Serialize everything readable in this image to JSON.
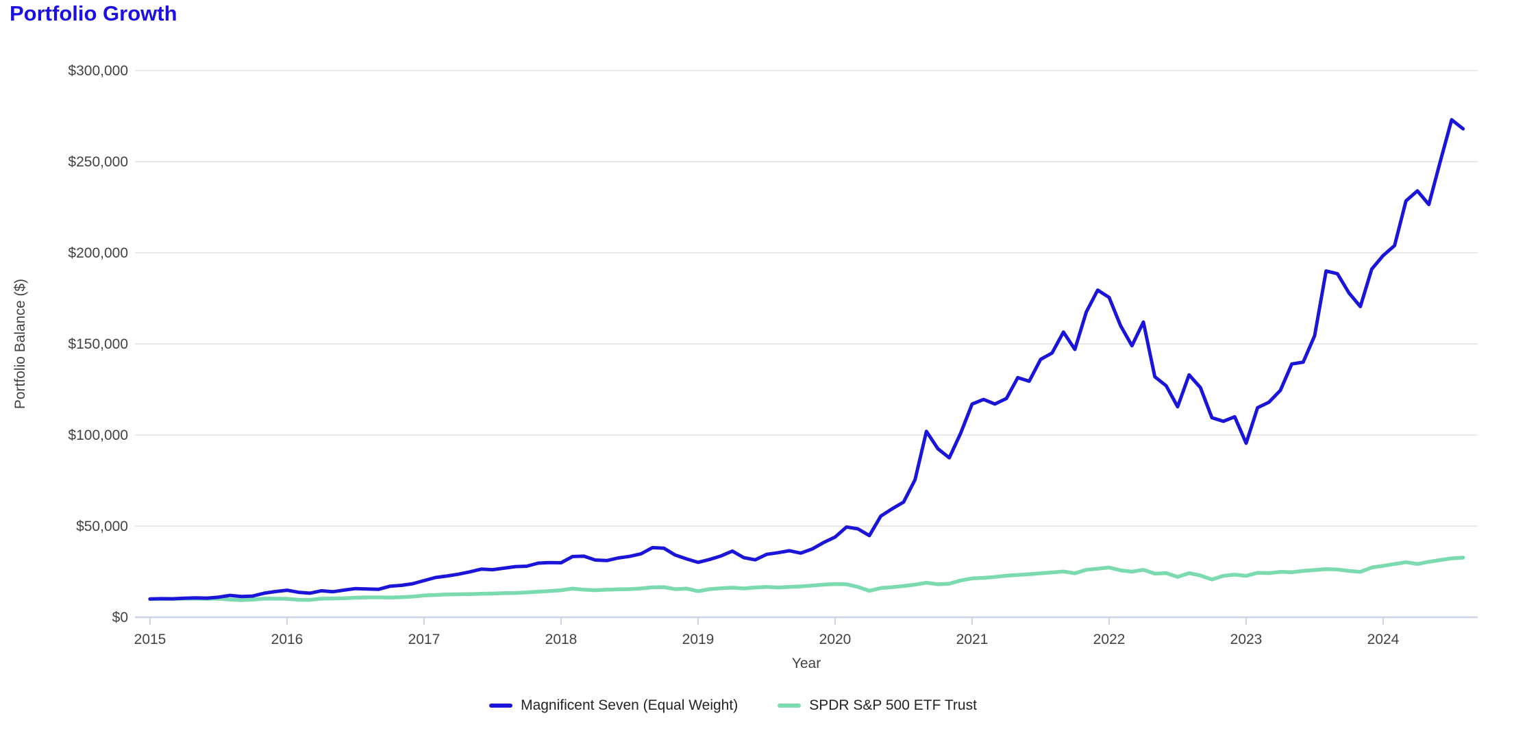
{
  "title": "Portfolio Growth",
  "colors": {
    "title_text": "#1c10e2",
    "series_m7": "#1b15d9",
    "series_spy": "#7bdab0",
    "gridline": "#e8e8e8",
    "axis_line": "#ccd4e8",
    "tick_text": "#424242",
    "legend_text": "#212327",
    "background": "#ffffff"
  },
  "chart_data": {
    "type": "line",
    "title": "Portfolio Growth",
    "xlabel": "Year",
    "ylabel": "Portfolio Balance ($)",
    "x_interval": "monthly",
    "x_start": "2015-01",
    "x_end": "2024-08",
    "x_tick_labels": [
      "2015",
      "2016",
      "2017",
      "2018",
      "2019",
      "2020",
      "2021",
      "2022",
      "2023",
      "2024"
    ],
    "y_ticks": [
      {
        "label": "$0",
        "value": 0
      },
      {
        "label": "$50,000",
        "value": 50000
      },
      {
        "label": "$100,000",
        "value": 100000
      },
      {
        "label": "$150,000",
        "value": 150000
      },
      {
        "label": "$200,000",
        "value": 200000
      },
      {
        "label": "$250,000",
        "value": 250000
      },
      {
        "label": "$300,000",
        "value": 300000
      }
    ],
    "ylim": [
      0,
      300000
    ],
    "grid": "horizontal",
    "legend_position": "bottom",
    "series": [
      {
        "name": "SPDR S&P 500 ETF Trust",
        "color": "#7bdab0",
        "stroke_width": 5.5,
        "values": [
          10000,
          10000,
          10100,
          10200,
          10200,
          10100,
          10200,
          9700,
          9400,
          9700,
          10200,
          10200,
          10100,
          9600,
          9500,
          10200,
          10300,
          10400,
          10700,
          10900,
          10900,
          10800,
          11000,
          11300,
          11900,
          12200,
          12500,
          12600,
          12700,
          12900,
          13000,
          13200,
          13300,
          13600,
          14000,
          14400,
          14800,
          15700,
          15100,
          14800,
          15100,
          15300,
          15400,
          15800,
          16400,
          16500,
          15400,
          15700,
          14300,
          15400,
          15900,
          16200,
          15800,
          16300,
          16600,
          16300,
          16600,
          16900,
          17400,
          17900,
          18200,
          18100,
          16600,
          14500,
          16000,
          16500,
          17100,
          17900,
          18900,
          18100,
          18400,
          20200,
          21300,
          21600,
          22100,
          22800,
          23200,
          23600,
          24100,
          24600,
          25100,
          24100,
          26000,
          26600,
          27300,
          25700,
          25000,
          26000,
          23900,
          24200,
          22100,
          24200,
          22900,
          20700,
          22700,
          23400,
          22700,
          24400,
          24200,
          24900,
          24700,
          25400,
          25900,
          26400,
          26200,
          25400,
          24900,
          27300,
          28200,
          29200,
          30200,
          29200,
          30400,
          31400,
          32300,
          32700
        ]
      },
      {
        "name": "Magnificent Seven (Equal Weight)",
        "color": "#1b15d9",
        "stroke_width": 5,
        "values": [
          10000,
          10200,
          10100,
          10400,
          10600,
          10500,
          11000,
          12000,
          11400,
          11600,
          13200,
          14100,
          14800,
          13700,
          13200,
          14500,
          14000,
          14900,
          15700,
          15500,
          15300,
          17000,
          17500,
          18400,
          20100,
          21800,
          22600,
          23600,
          24900,
          26400,
          26100,
          26900,
          27800,
          28000,
          29700,
          30000,
          29900,
          33300,
          33500,
          31400,
          31100,
          32500,
          33400,
          34800,
          38200,
          37900,
          34100,
          32000,
          30100,
          31700,
          33600,
          36300,
          32700,
          31500,
          34500,
          35400,
          36500,
          35200,
          37500,
          41000,
          44000,
          49500,
          48500,
          44800,
          55500,
          59500,
          63200,
          75500,
          102000,
          92500,
          87500,
          101000,
          117000,
          119500,
          117000,
          120000,
          131500,
          129500,
          141500,
          145000,
          156500,
          147000,
          167500,
          179500,
          175500,
          160000,
          149000,
          162000,
          132000,
          127000,
          115500,
          133000,
          126000,
          109500,
          107500,
          110000,
          95500,
          115000,
          118000,
          124500,
          139000,
          140000,
          154500,
          190000,
          188500,
          178000,
          170500,
          191000,
          198500,
          204000,
          228500,
          234000,
          226500,
          250000,
          273000,
          268000
        ]
      }
    ],
    "legend_order": [
      "Magnificent Seven (Equal Weight)",
      "SPDR S&P 500 ETF Trust"
    ]
  }
}
